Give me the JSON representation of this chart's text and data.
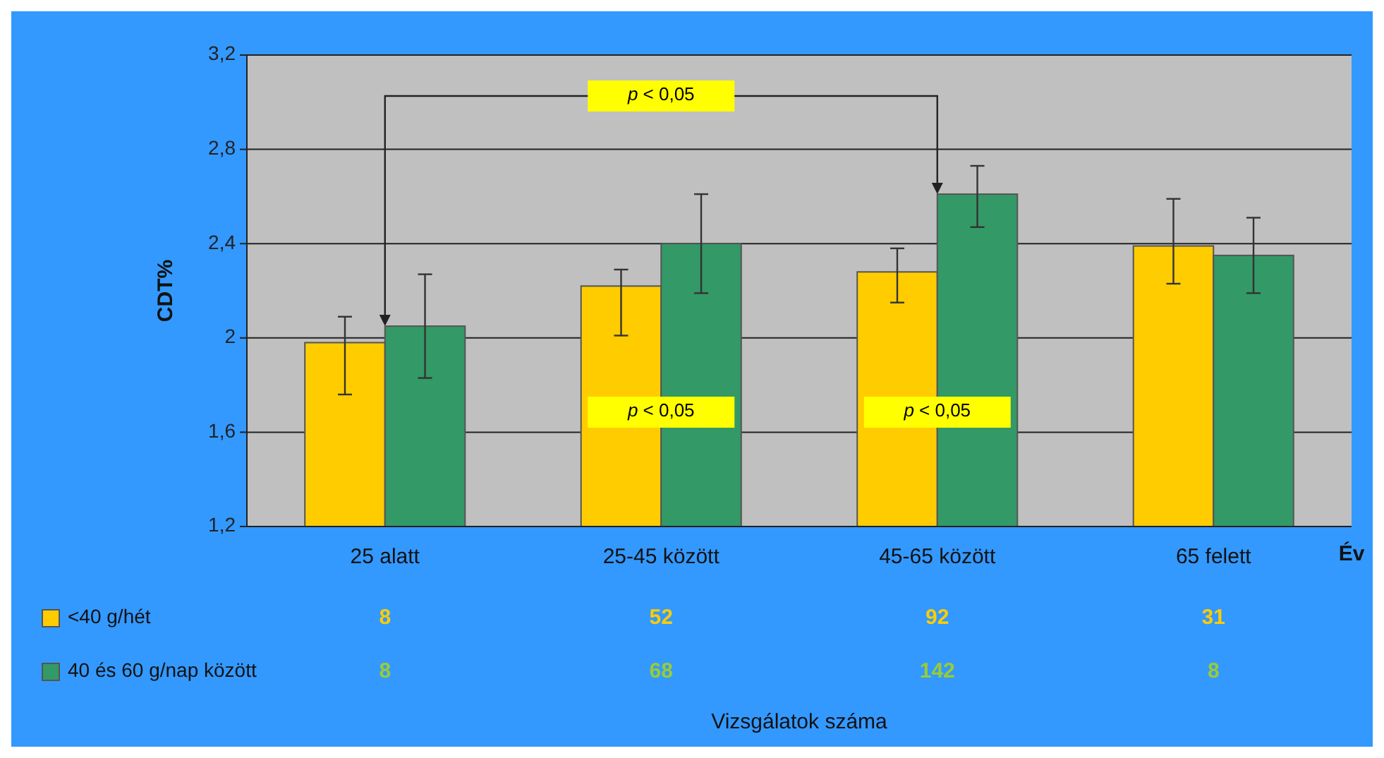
{
  "chart_data": {
    "type": "bar",
    "ylabel": "CDT%",
    "xlabel": "Év",
    "categories": [
      "25 alatt",
      "25-45 között",
      "45-65 között",
      "65 felett"
    ],
    "series": [
      {
        "name": "<40 g/hét",
        "color": "#ffcc00",
        "values": [
          1.98,
          2.22,
          2.28,
          2.39
        ],
        "errors": [
          [
            1.76,
            2.09
          ],
          [
            2.01,
            2.29
          ],
          [
            2.15,
            2.38
          ],
          [
            2.23,
            2.59
          ]
        ]
      },
      {
        "name": "40 és 60 g/nap között",
        "color": "#339966",
        "values": [
          2.05,
          2.4,
          2.61,
          2.35
        ],
        "errors": [
          [
            1.83,
            2.27
          ],
          [
            2.19,
            2.61
          ],
          [
            2.47,
            2.73
          ],
          [
            2.19,
            2.51
          ]
        ]
      }
    ],
    "ylim": [
      1.2,
      3.2
    ],
    "yticks": [
      {
        "value": 1.2,
        "label": "1,2"
      },
      {
        "value": 1.6,
        "label": "1,6"
      },
      {
        "value": 2,
        "label": "2"
      },
      {
        "value": 2.4,
        "label": "2,4"
      },
      {
        "value": 2.8,
        "label": "2,8"
      },
      {
        "value": 3.2,
        "label": "3,2"
      }
    ],
    "grid": "y",
    "legend": "bottom",
    "annotations": [
      "p < 0,05",
      "p < 0,05",
      "p < 0,05",
      "8",
      "52",
      "92",
      "31",
      "8",
      "68",
      "142",
      "8",
      "Vizsgálatok száma"
    ]
  }
}
